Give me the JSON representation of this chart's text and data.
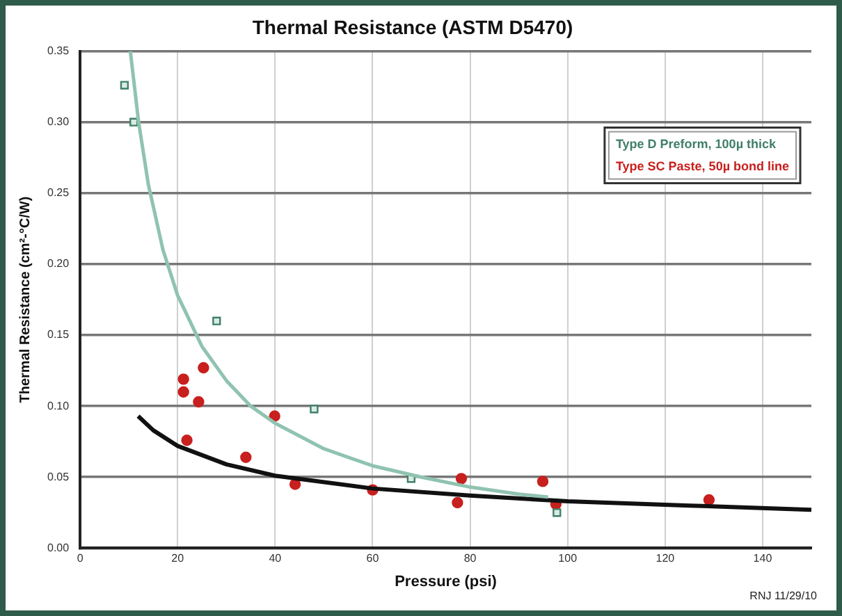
{
  "chart_data": {
    "type": "scatter",
    "title": "Thermal Resistance (ASTM D5470)",
    "xlabel": "Pressure (psi)",
    "ylabel": "Thermal Resistance (cm²-°C/W)",
    "xlim": [
      0,
      150
    ],
    "xticks": [
      0,
      20,
      40,
      60,
      80,
      100,
      120,
      140
    ],
    "ylim": [
      0,
      0.35
    ],
    "yticks": [
      {
        "value": 0,
        "label": "0.00"
      },
      {
        "value": 0.05,
        "label": "0.05"
      },
      {
        "value": 0.1,
        "label": "0.10"
      },
      {
        "value": 0.15,
        "label": "0.15"
      },
      {
        "value": 0.2,
        "label": "0.20"
      },
      {
        "value": 0.25,
        "label": "0.25"
      },
      {
        "value": 0.3,
        "label": "0.30"
      },
      {
        "value": 0.35,
        "label": "0.35"
      }
    ],
    "grid": true,
    "legend": "top right",
    "series": [
      {
        "type": "line",
        "color": "#8fc3b0",
        "marker": "none",
        "x": [
          10.3,
          12,
          14,
          17,
          20,
          25,
          30,
          35,
          40,
          50,
          60,
          70,
          80,
          90,
          96
        ],
        "values": [
          0.35,
          0.3,
          0.256,
          0.21,
          0.178,
          0.142,
          0.118,
          0.1,
          0.088,
          0.07,
          0.058,
          0.05,
          0.043,
          0.038,
          0.036
        ]
      },
      {
        "type": "line",
        "color": "#111111",
        "marker": "none",
        "x": [
          11.9,
          15,
          20,
          30,
          40,
          60,
          80,
          100,
          125,
          150
        ],
        "values": [
          0.093,
          0.083,
          0.072,
          0.059,
          0.051,
          0.042,
          0.037,
          0.033,
          0.03,
          0.027
        ]
      },
      {
        "type": "scatter",
        "name": "Type D Preform, 100µ thick",
        "color": "#3f7f68",
        "marker": "square",
        "x": [
          9.1,
          11,
          28,
          48,
          67.9,
          97.8
        ],
        "values": [
          0.326,
          0.3,
          0.16,
          0.098,
          0.049,
          0.025
        ]
      },
      {
        "type": "scatter",
        "name": "Type SC Paste, 50µ bond line",
        "color": "#c8201e",
        "marker": "circle",
        "x": [
          21.2,
          21.2,
          25.3,
          24.3,
          39.9,
          21.9,
          34,
          44.1,
          60,
          78.2,
          77.4,
          94.9,
          97.6,
          129
        ],
        "values": [
          0.119,
          0.11,
          0.127,
          0.103,
          0.093,
          0.076,
          0.064,
          0.045,
          0.041,
          0.049,
          0.032,
          0.047,
          0.031,
          0.034
        ]
      }
    ],
    "annotations": [
      "RNJ 11/29/10"
    ]
  }
}
